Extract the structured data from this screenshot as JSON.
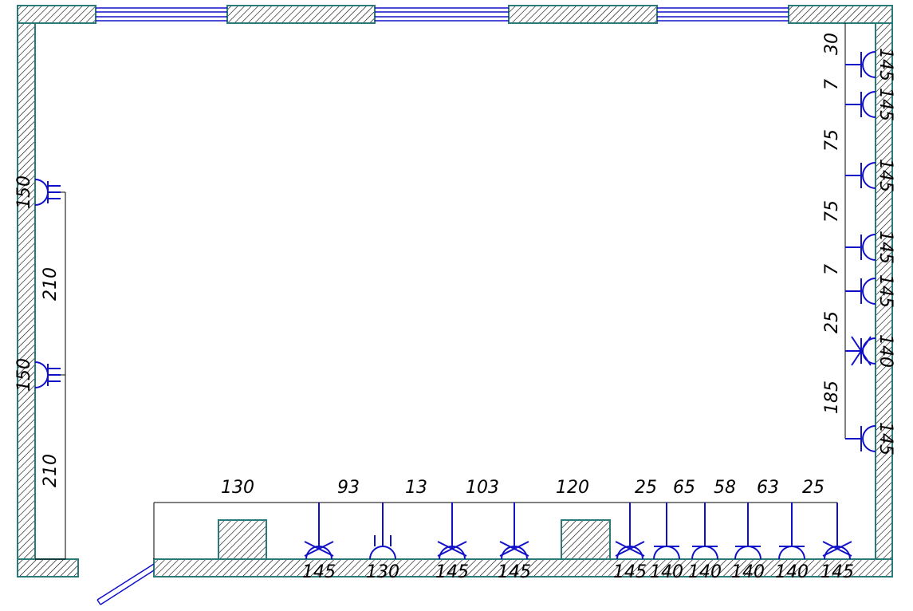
{
  "drawing": {
    "left_wall": {
      "outlets": [
        {
          "height_label": "150",
          "type": "double-earthed"
        },
        {
          "height_label": "150",
          "type": "double-earthed"
        }
      ],
      "spacing_labels": [
        "210",
        "210"
      ]
    },
    "right_wall": {
      "outlets": [
        {
          "height_label": "145",
          "type": "single"
        },
        {
          "height_label": "145",
          "type": "single"
        },
        {
          "height_label": "145",
          "type": "single"
        },
        {
          "height_label": "145",
          "type": "single"
        },
        {
          "height_label": "145",
          "type": "single"
        },
        {
          "height_label": "140",
          "type": "cross"
        },
        {
          "height_label": "145",
          "type": "single"
        }
      ],
      "spacing_labels": [
        "30",
        "7",
        "75",
        "75",
        "7",
        "25",
        "185"
      ]
    },
    "bottom_wall": {
      "spacing_labels": [
        "130",
        "93",
        "13",
        "103",
        "120",
        "25",
        "65",
        "58",
        "63",
        "25"
      ],
      "outlets": [
        {
          "height_label": "145",
          "type": "cross"
        },
        {
          "height_label": "130",
          "type": "double-tick"
        },
        {
          "height_label": "145",
          "type": "cross"
        },
        {
          "height_label": "145",
          "type": "cross"
        },
        {
          "height_label": "145",
          "type": "cross"
        },
        {
          "height_label": "140",
          "type": "single"
        },
        {
          "height_label": "140",
          "type": "single"
        },
        {
          "height_label": "140",
          "type": "single"
        },
        {
          "height_label": "140",
          "type": "single"
        },
        {
          "height_label": "145",
          "type": "cross"
        }
      ]
    },
    "colors": {
      "symbol": "#1010c8",
      "wall_edge": "#2a7a7a",
      "dimension": "#000000",
      "window": "#1010c8"
    }
  }
}
